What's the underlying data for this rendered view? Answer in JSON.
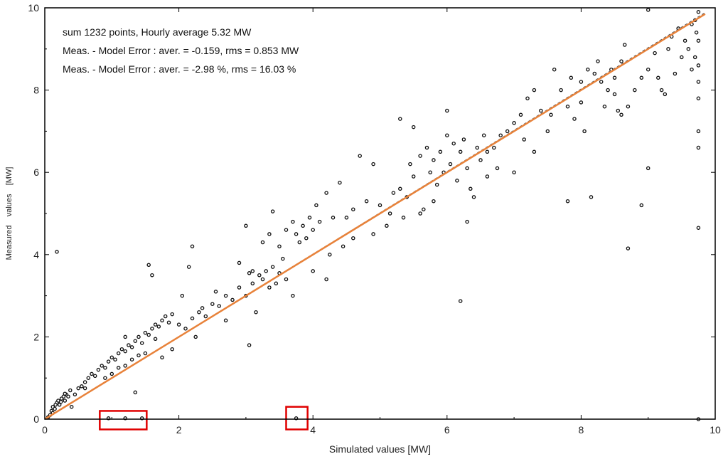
{
  "chart_data": {
    "type": "scatter",
    "xlabel": "Simulated values [MW]",
    "ylabel": "Measured    values    [MW]",
    "xlim": [
      0,
      10
    ],
    "ylim": [
      0,
      10
    ],
    "xticks": [
      "0",
      "2",
      "4",
      "6",
      "8",
      "10"
    ],
    "yticks": [
      "0",
      "2",
      "4",
      "6",
      "8",
      "10"
    ],
    "grid": false,
    "annotations": [
      "sum 1232 points, Hourly average  5.32 MW",
      "Meas. - Model Error  : aver. = -0.159, rms = 0.853 MW",
      "Meas. - Model Error  : aver. = -2.98 %, rms = 16.03 %"
    ],
    "reference_lines": [
      {
        "name": "",
        "from": [
          0,
          0
        ],
        "to": [
          9.85,
          9.85
        ],
        "color": "#e8823a"
      }
    ],
    "highlight_boxes": [
      {
        "x0": 0.82,
        "x1": 1.52,
        "y0": -0.25,
        "y1": 0.2,
        "color": "#e00000"
      },
      {
        "x0": 3.6,
        "x1": 3.92,
        "y0": -0.25,
        "y1": 0.3,
        "color": "#e00000"
      }
    ],
    "series": [
      {
        "name": "",
        "color": "#111111",
        "points": [
          [
            0.05,
            0.05
          ],
          [
            0.08,
            0.1
          ],
          [
            0.1,
            0.2
          ],
          [
            0.12,
            0.3
          ],
          [
            0.15,
            0.25
          ],
          [
            0.18,
            0.4
          ],
          [
            0.2,
            0.45
          ],
          [
            0.22,
            0.35
          ],
          [
            0.25,
            0.5
          ],
          [
            0.28,
            0.55
          ],
          [
            0.3,
            0.45
          ],
          [
            0.32,
            0.6
          ],
          [
            0.35,
            0.55
          ],
          [
            0.38,
            0.7
          ],
          [
            0.12,
            0.15
          ],
          [
            0.16,
            0.35
          ],
          [
            0.24,
            0.42
          ],
          [
            0.3,
            0.62
          ],
          [
            0.18,
            4.07
          ],
          [
            0.45,
            0.6
          ],
          [
            0.5,
            0.75
          ],
          [
            0.55,
            0.8
          ],
          [
            0.6,
            0.9
          ],
          [
            0.65,
            1.0
          ],
          [
            0.7,
            1.1
          ],
          [
            0.75,
            1.05
          ],
          [
            0.8,
            1.2
          ],
          [
            0.85,
            1.3
          ],
          [
            0.9,
            1.25
          ],
          [
            0.95,
            1.4
          ],
          [
            1.0,
            1.5
          ],
          [
            1.05,
            1.45
          ],
          [
            1.1,
            1.6
          ],
          [
            1.15,
            1.7
          ],
          [
            1.2,
            1.65
          ],
          [
            1.25,
            1.8
          ],
          [
            1.3,
            1.75
          ],
          [
            1.35,
            1.9
          ],
          [
            1.4,
            2.0
          ],
          [
            1.45,
            1.85
          ],
          [
            1.5,
            2.1
          ],
          [
            1.55,
            2.05
          ],
          [
            1.6,
            2.2
          ],
          [
            1.65,
            2.3
          ],
          [
            1.7,
            2.25
          ],
          [
            1.75,
            2.4
          ],
          [
            1.8,
            2.5
          ],
          [
            1.85,
            2.35
          ],
          [
            1.9,
            2.55
          ],
          [
            0.9,
            1.0
          ],
          [
            1.0,
            1.1
          ],
          [
            1.1,
            1.25
          ],
          [
            1.2,
            1.3
          ],
          [
            1.3,
            1.45
          ],
          [
            1.4,
            1.55
          ],
          [
            1.5,
            1.6
          ],
          [
            1.55,
            3.75
          ],
          [
            1.6,
            3.5
          ],
          [
            1.35,
            0.65
          ],
          [
            1.2,
            2.0
          ],
          [
            2.0,
            2.3
          ],
          [
            2.05,
            3.0
          ],
          [
            2.1,
            2.2
          ],
          [
            2.15,
            3.7
          ],
          [
            2.2,
            2.45
          ],
          [
            2.2,
            4.2
          ],
          [
            2.25,
            2.0
          ],
          [
            2.3,
            2.6
          ],
          [
            2.4,
            2.5
          ],
          [
            2.5,
            2.8
          ],
          [
            2.6,
            2.75
          ],
          [
            2.7,
            3.0
          ],
          [
            2.8,
            2.9
          ],
          [
            2.9,
            3.2
          ],
          [
            2.9,
            3.8
          ],
          [
            3.0,
            3.0
          ],
          [
            3.0,
            4.7
          ],
          [
            3.05,
            1.8
          ],
          [
            3.1,
            3.3
          ],
          [
            3.15,
            2.6
          ],
          [
            3.2,
            3.5
          ],
          [
            3.25,
            3.4
          ],
          [
            3.3,
            3.6
          ],
          [
            3.35,
            3.2
          ],
          [
            3.4,
            3.7
          ],
          [
            3.45,
            3.3
          ],
          [
            3.5,
            3.55
          ],
          [
            3.55,
            3.9
          ],
          [
            3.6,
            3.4
          ],
          [
            3.25,
            4.3
          ],
          [
            3.35,
            4.5
          ],
          [
            3.4,
            5.05
          ],
          [
            3.5,
            4.2
          ],
          [
            3.6,
            4.6
          ],
          [
            3.7,
            4.8
          ],
          [
            3.75,
            4.5
          ],
          [
            3.8,
            4.3
          ],
          [
            3.85,
            4.7
          ],
          [
            3.9,
            4.4
          ],
          [
            3.95,
            4.9
          ],
          [
            4.0,
            4.6
          ],
          [
            4.05,
            5.2
          ],
          [
            4.1,
            4.8
          ],
          [
            4.2,
            5.5
          ],
          [
            4.3,
            4.9
          ],
          [
            4.4,
            5.75
          ],
          [
            4.0,
            3.6
          ],
          [
            4.2,
            3.4
          ],
          [
            3.7,
            3.0
          ],
          [
            3.1,
            3.6
          ],
          [
            4.5,
            4.9
          ],
          [
            4.6,
            5.1
          ],
          [
            4.7,
            6.4
          ],
          [
            4.8,
            5.3
          ],
          [
            4.9,
            6.2
          ],
          [
            5.0,
            5.2
          ],
          [
            5.1,
            4.7
          ],
          [
            5.2,
            5.5
          ],
          [
            5.3,
            5.6
          ],
          [
            5.3,
            7.3
          ],
          [
            5.4,
            5.4
          ],
          [
            5.5,
            5.9
          ],
          [
            5.5,
            7.1
          ],
          [
            5.6,
            6.4
          ],
          [
            5.6,
            5.0
          ],
          [
            5.7,
            6.6
          ],
          [
            5.75,
            6.0
          ],
          [
            5.8,
            6.3
          ],
          [
            5.85,
            5.7
          ],
          [
            5.9,
            6.5
          ],
          [
            5.95,
            6.0
          ],
          [
            6.0,
            6.9
          ],
          [
            6.05,
            6.2
          ],
          [
            6.1,
            6.7
          ],
          [
            6.15,
            5.8
          ],
          [
            6.2,
            6.5
          ],
          [
            6.25,
            6.8
          ],
          [
            6.3,
            6.1
          ],
          [
            6.35,
            5.6
          ],
          [
            6.4,
            5.4
          ],
          [
            6.45,
            6.6
          ],
          [
            6.5,
            6.3
          ],
          [
            6.55,
            6.9
          ],
          [
            6.6,
            6.5
          ],
          [
            6.2,
            2.87
          ],
          [
            6.0,
            7.5
          ],
          [
            6.3,
            4.8
          ],
          [
            5.8,
            5.3
          ],
          [
            6.7,
            6.6
          ],
          [
            6.8,
            6.9
          ],
          [
            6.9,
            7.0
          ],
          [
            7.0,
            7.2
          ],
          [
            7.0,
            6.0
          ],
          [
            7.1,
            7.4
          ],
          [
            7.2,
            7.8
          ],
          [
            7.3,
            6.5
          ],
          [
            7.3,
            8.0
          ],
          [
            7.4,
            7.5
          ],
          [
            7.5,
            7.0
          ],
          [
            7.6,
            8.5
          ],
          [
            7.7,
            8.0
          ],
          [
            7.8,
            7.6
          ],
          [
            7.8,
            5.3
          ],
          [
            7.9,
            7.3
          ],
          [
            8.0,
            8.2
          ],
          [
            8.0,
            7.7
          ],
          [
            8.1,
            8.5
          ],
          [
            8.15,
            5.4
          ],
          [
            8.2,
            8.4
          ],
          [
            8.25,
            8.7
          ],
          [
            8.3,
            8.2
          ],
          [
            8.35,
            7.6
          ],
          [
            8.4,
            8.0
          ],
          [
            8.45,
            8.5
          ],
          [
            8.5,
            7.9
          ],
          [
            8.55,
            7.5
          ],
          [
            8.6,
            8.7
          ],
          [
            8.65,
            9.1
          ],
          [
            8.7,
            4.15
          ],
          [
            8.7,
            7.6
          ],
          [
            8.8,
            8.0
          ],
          [
            8.9,
            8.3
          ],
          [
            8.9,
            5.2
          ],
          [
            9.0,
            6.1
          ],
          [
            9.0,
            8.5
          ],
          [
            9.1,
            8.9
          ],
          [
            9.2,
            8.0
          ],
          [
            9.3,
            9.0
          ],
          [
            9.4,
            8.4
          ],
          [
            9.45,
            9.5
          ],
          [
            9.5,
            8.8
          ],
          [
            9.55,
            9.2
          ],
          [
            9.6,
            9.0
          ],
          [
            9.65,
            9.6
          ],
          [
            9.7,
            8.8
          ],
          [
            9.72,
            9.4
          ],
          [
            9.75,
            8.6
          ],
          [
            9.75,
            7.8
          ],
          [
            9.75,
            7.0
          ],
          [
            9.75,
            6.6
          ],
          [
            9.75,
            9.9
          ],
          [
            9.75,
            9.2
          ],
          [
            9.75,
            8.2
          ],
          [
            9.75,
            4.65
          ],
          [
            9.75,
            0.0
          ],
          [
            9.7,
            9.7
          ],
          [
            9.65,
            8.5
          ],
          [
            9.0,
            9.95
          ],
          [
            0.95,
            0.02
          ],
          [
            1.2,
            0.02
          ],
          [
            1.45,
            0.02
          ],
          [
            3.75,
            0.02
          ],
          [
            2.7,
            2.4
          ],
          [
            2.35,
            2.7
          ],
          [
            2.55,
            3.1
          ],
          [
            1.75,
            1.5
          ],
          [
            1.65,
            1.95
          ],
          [
            0.6,
            0.75
          ],
          [
            0.4,
            0.3
          ],
          [
            1.9,
            1.7
          ],
          [
            4.6,
            4.4
          ],
          [
            4.9,
            4.5
          ],
          [
            5.15,
            5.0
          ],
          [
            5.35,
            4.9
          ],
          [
            5.45,
            6.2
          ],
          [
            5.65,
            5.1
          ],
          [
            6.6,
            5.9
          ],
          [
            6.75,
            6.1
          ],
          [
            7.15,
            6.8
          ],
          [
            7.55,
            7.4
          ],
          [
            7.85,
            8.3
          ],
          [
            8.05,
            7.0
          ],
          [
            8.5,
            8.3
          ],
          [
            8.6,
            7.4
          ],
          [
            9.15,
            8.3
          ],
          [
            9.25,
            7.9
          ],
          [
            9.35,
            9.3
          ],
          [
            4.25,
            4.0
          ],
          [
            4.45,
            4.2
          ],
          [
            3.05,
            3.55
          ]
        ]
      }
    ]
  }
}
